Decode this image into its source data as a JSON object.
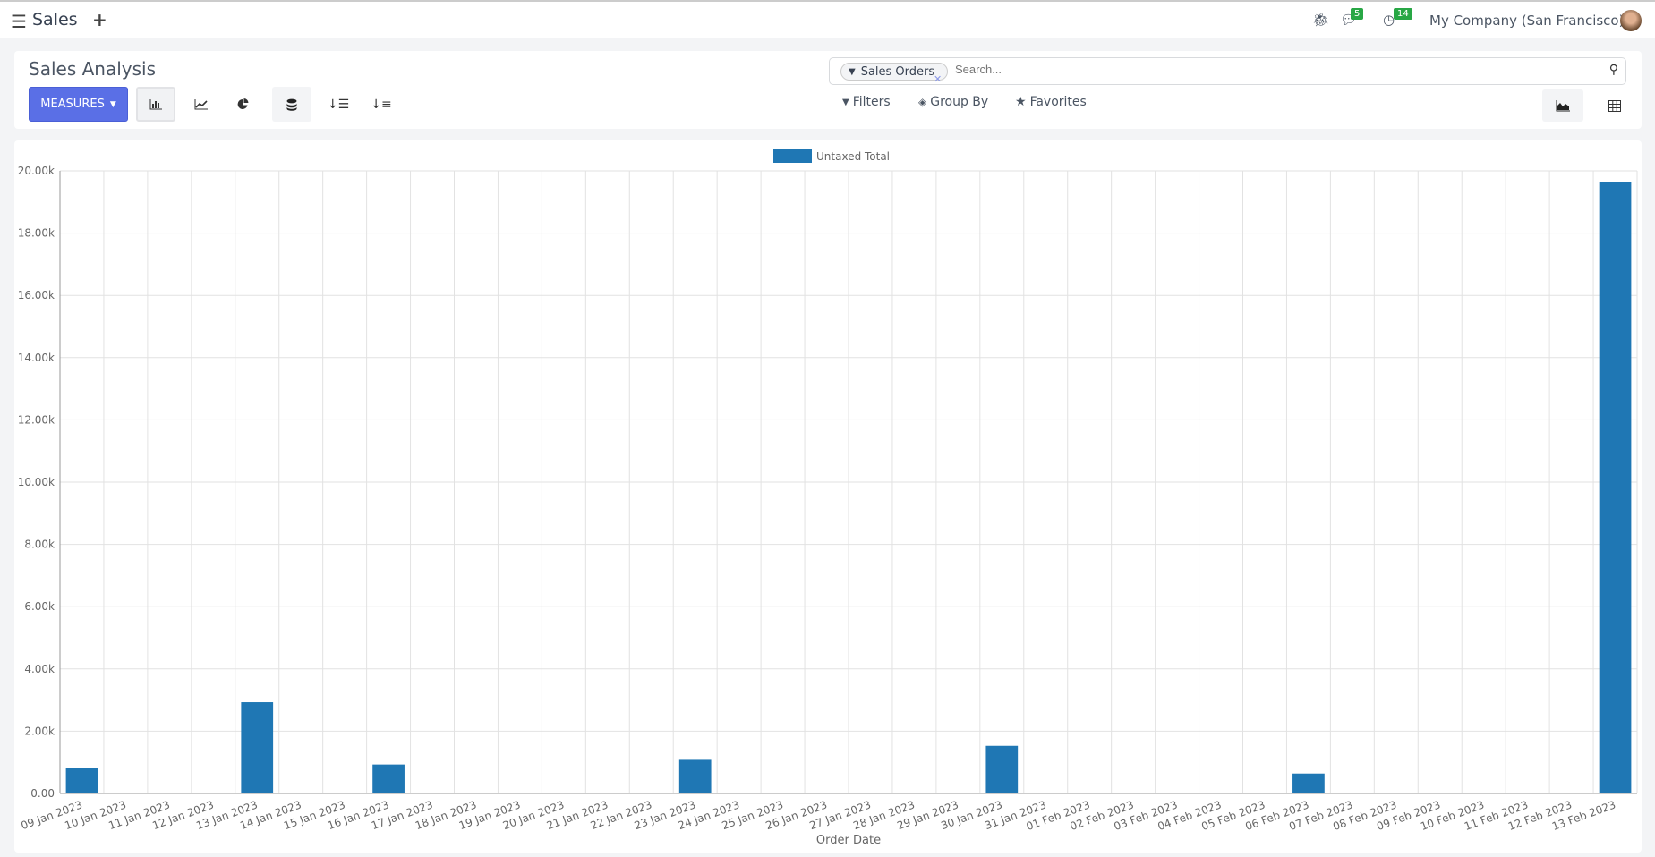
{
  "navbar": {
    "app": "Sales",
    "company": "My Company (San Francisco)",
    "messages_count": "5",
    "activities_count": "14"
  },
  "control_panel": {
    "title": "Sales Analysis",
    "measures_label": "MEASURES",
    "search": {
      "facet": "Sales Orders",
      "placeholder": "Search..."
    },
    "filters_label": "Filters",
    "groupby_label": "Group By",
    "favorites_label": "Favorites"
  },
  "colors": {
    "accent": "#5a6fe6",
    "bar": "#1f77b4",
    "badge": "#28a745"
  },
  "chart_data": {
    "type": "bar",
    "categories": [
      "09 Jan 2023",
      "10 Jan 2023",
      "11 Jan 2023",
      "12 Jan 2023",
      "13 Jan 2023",
      "14 Jan 2023",
      "15 Jan 2023",
      "16 Jan 2023",
      "17 Jan 2023",
      "18 Jan 2023",
      "19 Jan 2023",
      "20 Jan 2023",
      "21 Jan 2023",
      "22 Jan 2023",
      "23 Jan 2023",
      "24 Jan 2023",
      "25 Jan 2023",
      "26 Jan 2023",
      "27 Jan 2023",
      "28 Jan 2023",
      "29 Jan 2023",
      "30 Jan 2023",
      "31 Jan 2023",
      "01 Feb 2023",
      "02 Feb 2023",
      "03 Feb 2023",
      "04 Feb 2023",
      "05 Feb 2023",
      "06 Feb 2023",
      "07 Feb 2023",
      "08 Feb 2023",
      "09 Feb 2023",
      "10 Feb 2023",
      "11 Feb 2023",
      "12 Feb 2023",
      "13 Feb 2023"
    ],
    "series": [
      {
        "name": "Untaxed Total",
        "values": [
          820,
          0,
          0,
          0,
          2930,
          0,
          0,
          930,
          0,
          0,
          0,
          0,
          0,
          0,
          1080,
          0,
          0,
          0,
          0,
          0,
          0,
          1530,
          0,
          0,
          0,
          0,
          0,
          0,
          640,
          0,
          0,
          0,
          0,
          0,
          0,
          19630
        ]
      }
    ],
    "xlabel": "Order Date",
    "ylabel": "",
    "ylim": [
      0,
      20000
    ],
    "yticks": [
      "0.00",
      "2.00k",
      "4.00k",
      "6.00k",
      "8.00k",
      "10.00k",
      "12.00k",
      "14.00k",
      "16.00k",
      "18.00k",
      "20.00k"
    ],
    "grid": true,
    "legend": "top"
  }
}
